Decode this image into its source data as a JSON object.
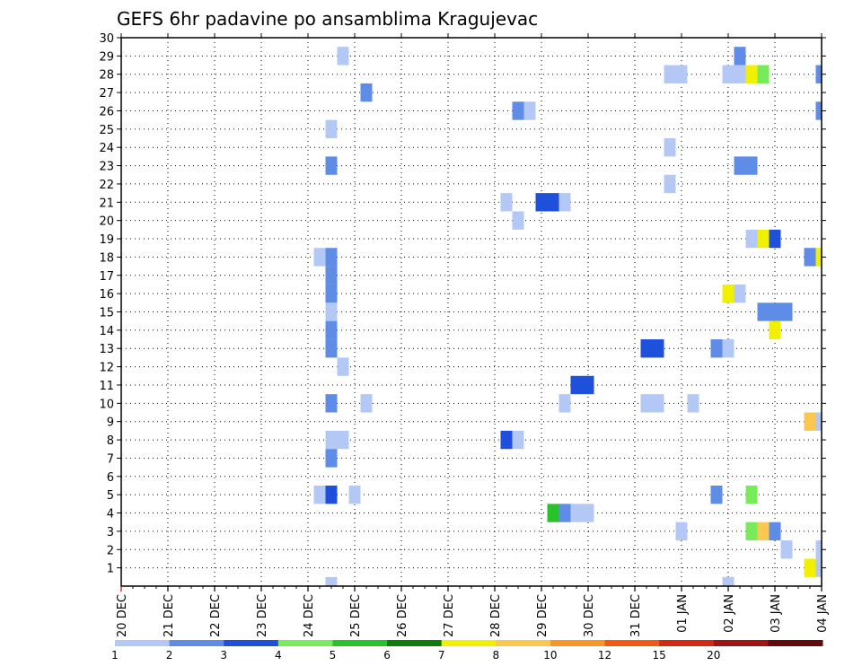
{
  "chart_data": {
    "type": "heatmap",
    "title": "GEFS 6hr padavine po ansamblima Kragujevac",
    "xlabel": "",
    "ylabel": "",
    "x_ticks": [
      "20 DEC",
      "21 DEC",
      "22 DEC",
      "23 DEC",
      "24 DEC",
      "25 DEC",
      "26 DEC",
      "27 DEC",
      "28 DEC",
      "29 DEC",
      "30 DEC",
      "31 DEC",
      "01 JAN",
      "02 JAN",
      "03 JAN",
      "04 JAN"
    ],
    "y_ticks": [
      "1",
      "2",
      "3",
      "4",
      "5",
      "6",
      "7",
      "8",
      "9",
      "10",
      "11",
      "12",
      "13",
      "14",
      "15",
      "16",
      "17",
      "18",
      "19",
      "20",
      "21",
      "22",
      "23",
      "24",
      "25",
      "26",
      "27",
      "28",
      "29",
      "30"
    ],
    "xlim_steps": [
      0,
      60
    ],
    "ylim": [
      0,
      30
    ],
    "grid": true,
    "legend": "bottom colorbar",
    "colorbar": {
      "labels": [
        "1",
        "2",
        "3",
        "4",
        "5",
        "6",
        "7",
        "8",
        "10",
        "12",
        "15",
        "20"
      ],
      "colors": [
        "#b4c8f5",
        "#5f8ce6",
        "#1e50dc",
        "#78eb5a",
        "#28c328",
        "#0a7d0a",
        "#f0f000",
        "#fac850",
        "#fa9628",
        "#f05a14",
        "#d22814",
        "#a01414",
        "#640a0a"
      ]
    },
    "cells": [
      {
        "m": 29,
        "s": 19,
        "v": 1.5
      },
      {
        "m": 29,
        "s": 53,
        "v": 2.5
      },
      {
        "m": 28,
        "s": 47,
        "v": 1.5
      },
      {
        "m": 28,
        "s": 48,
        "v": 1.5
      },
      {
        "m": 28,
        "s": 52,
        "v": 1.5
      },
      {
        "m": 28,
        "s": 53,
        "v": 1.5
      },
      {
        "m": 28,
        "s": 54,
        "v": 7.5
      },
      {
        "m": 28,
        "s": 55,
        "v": 4.5
      },
      {
        "m": 28,
        "s": 60,
        "v": 2.5
      },
      {
        "m": 27,
        "s": 21,
        "v": 2.5
      },
      {
        "m": 26,
        "s": 34,
        "v": 2.5
      },
      {
        "m": 26,
        "s": 35,
        "v": 1.5
      },
      {
        "m": 26,
        "s": 60,
        "v": 2.5
      },
      {
        "m": 25,
        "s": 18,
        "v": 1.5
      },
      {
        "m": 24,
        "s": 47,
        "v": 1.5
      },
      {
        "m": 23,
        "s": 18,
        "v": 2.5
      },
      {
        "m": 23,
        "s": 53,
        "v": 2.5
      },
      {
        "m": 23,
        "s": 54,
        "v": 2.5
      },
      {
        "m": 22,
        "s": 47,
        "v": 1.5
      },
      {
        "m": 21,
        "s": 33,
        "v": 1.5
      },
      {
        "m": 21,
        "s": 36,
        "v": 3.5
      },
      {
        "m": 21,
        "s": 37,
        "v": 3.5
      },
      {
        "m": 21,
        "s": 38,
        "v": 1.5
      },
      {
        "m": 20,
        "s": 34,
        "v": 1.5
      },
      {
        "m": 19,
        "s": 54,
        "v": 1.5
      },
      {
        "m": 19,
        "s": 55,
        "v": 7.5
      },
      {
        "m": 19,
        "s": 56,
        "v": 3.5
      },
      {
        "m": 18,
        "s": 17,
        "v": 1.5
      },
      {
        "m": 18,
        "s": 18,
        "v": 2.5
      },
      {
        "m": 18,
        "s": 59,
        "v": 2.5
      },
      {
        "m": 18,
        "s": 60,
        "v": 7.5
      },
      {
        "m": 17,
        "s": 18,
        "v": 2.5
      },
      {
        "m": 16,
        "s": 18,
        "v": 2.5
      },
      {
        "m": 16,
        "s": 52,
        "v": 7.5
      },
      {
        "m": 16,
        "s": 53,
        "v": 1.5
      },
      {
        "m": 15,
        "s": 18,
        "v": 1.5
      },
      {
        "m": 15,
        "s": 55,
        "v": 2.5
      },
      {
        "m": 15,
        "s": 56,
        "v": 2.5
      },
      {
        "m": 15,
        "s": 57,
        "v": 2.5
      },
      {
        "m": 14,
        "s": 18,
        "v": 2.5
      },
      {
        "m": 14,
        "s": 56,
        "v": 7.5
      },
      {
        "m": 13,
        "s": 18,
        "v": 2.5
      },
      {
        "m": 13,
        "s": 45,
        "v": 3.5
      },
      {
        "m": 13,
        "s": 46,
        "v": 3.5
      },
      {
        "m": 13,
        "s": 51,
        "v": 2.5
      },
      {
        "m": 13,
        "s": 52,
        "v": 1.5
      },
      {
        "m": 12,
        "s": 19,
        "v": 1.5
      },
      {
        "m": 11,
        "s": 39,
        "v": 3.5
      },
      {
        "m": 11,
        "s": 40,
        "v": 3.5
      },
      {
        "m": 10,
        "s": 18,
        "v": 2.5
      },
      {
        "m": 10,
        "s": 21,
        "v": 1.5
      },
      {
        "m": 10,
        "s": 38,
        "v": 1.5
      },
      {
        "m": 10,
        "s": 45,
        "v": 1.5
      },
      {
        "m": 10,
        "s": 46,
        "v": 1.5
      },
      {
        "m": 10,
        "s": 49,
        "v": 1.5
      },
      {
        "m": 9,
        "s": 59,
        "v": 9
      },
      {
        "m": 9,
        "s": 60,
        "v": 1.5
      },
      {
        "m": 8,
        "s": 18,
        "v": 1.5
      },
      {
        "m": 8,
        "s": 19,
        "v": 1.5
      },
      {
        "m": 8,
        "s": 33,
        "v": 3.5
      },
      {
        "m": 8,
        "s": 34,
        "v": 1.5
      },
      {
        "m": 7,
        "s": 18,
        "v": 2.5
      },
      {
        "m": 5,
        "s": 17,
        "v": 1.5
      },
      {
        "m": 5,
        "s": 18,
        "v": 3.5
      },
      {
        "m": 5,
        "s": 20,
        "v": 1.5
      },
      {
        "m": 5,
        "s": 51,
        "v": 2.5
      },
      {
        "m": 5,
        "s": 54,
        "v": 4.5
      },
      {
        "m": 4,
        "s": 37,
        "v": 5.5
      },
      {
        "m": 4,
        "s": 38,
        "v": 2.5
      },
      {
        "m": 4,
        "s": 39,
        "v": 1.5
      },
      {
        "m": 4,
        "s": 40,
        "v": 1.5
      },
      {
        "m": 3,
        "s": 48,
        "v": 1.5
      },
      {
        "m": 3,
        "s": 54,
        "v": 4.5
      },
      {
        "m": 3,
        "s": 55,
        "v": 9
      },
      {
        "m": 3,
        "s": 56,
        "v": 2.5
      },
      {
        "m": 2,
        "s": 57,
        "v": 1.5
      },
      {
        "m": 2,
        "s": 60,
        "v": 1.5
      },
      {
        "m": 1,
        "s": 59,
        "v": 7.5
      },
      {
        "m": 1,
        "s": 60,
        "v": 1.5
      },
      {
        "m": 0,
        "s": 18,
        "v": 1.5
      },
      {
        "m": 0,
        "s": 52,
        "v": 1.5
      }
    ]
  }
}
